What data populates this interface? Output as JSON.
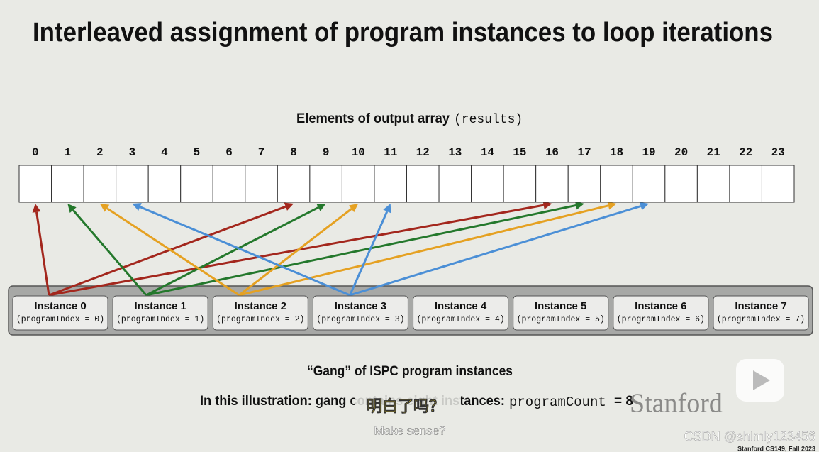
{
  "title": "Interleaved assignment of program instances to loop iterations",
  "array": {
    "caption": "Elements of output array",
    "caption_code": "(results)",
    "indices": [
      0,
      1,
      2,
      3,
      4,
      5,
      6,
      7,
      8,
      9,
      10,
      11,
      12,
      13,
      14,
      15,
      16,
      17,
      18,
      19,
      20,
      21,
      22,
      23
    ]
  },
  "instances": [
    {
      "label": "Instance 0",
      "detail": "(programIndex = 0)"
    },
    {
      "label": "Instance 1",
      "detail": "(programIndex = 1)"
    },
    {
      "label": "Instance 2",
      "detail": "(programIndex = 2)"
    },
    {
      "label": "Instance 3",
      "detail": "(programIndex = 3)"
    },
    {
      "label": "Instance 4",
      "detail": "(programIndex = 4)"
    },
    {
      "label": "Instance 5",
      "detail": "(programIndex = 5)"
    },
    {
      "label": "Instance 6",
      "detail": "(programIndex = 6)"
    },
    {
      "label": "Instance 7",
      "detail": "(programIndex = 7)"
    }
  ],
  "arrow_colors": [
    "#a3271d",
    "#24782c",
    "#e5a122",
    "#4b8fd6"
  ],
  "gang_caption": "“Gang” of ISPC program instances",
  "illustration": {
    "text": "In this illustration: gang contains eight instances:",
    "code": "programCount",
    "equals": "= 8"
  },
  "video_subtitle": {
    "zh": "明白了吗？",
    "en": "Make sense?"
  },
  "logo": "Stanford",
  "watermark": "CSDN @shimly123456",
  "footer": "Stanford CS149, Fall 2023"
}
